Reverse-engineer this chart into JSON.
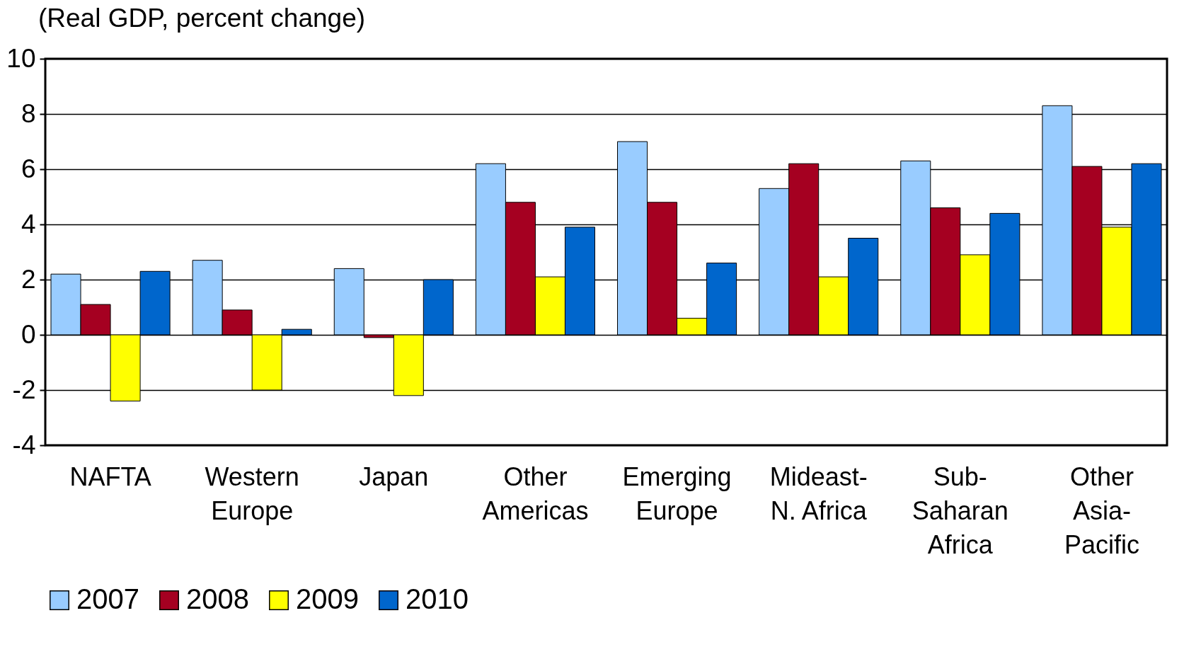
{
  "chart_data": {
    "type": "bar",
    "title": "(Real GDP, percent change)",
    "categories": [
      "NAFTA",
      "Western\nEurope",
      "Japan",
      "Other\nAmericas",
      "Emerging\nEurope",
      "Mideast-\nN. Africa",
      "Sub-\nSaharan\nAfrica",
      "Other\nAsia-\nPacific"
    ],
    "series": [
      {
        "name": "2007",
        "color": "#99ccff",
        "values": [
          2.2,
          2.7,
          2.4,
          6.2,
          7.0,
          5.3,
          6.3,
          8.3
        ]
      },
      {
        "name": "2008",
        "color": "#a50021",
        "values": [
          1.1,
          0.9,
          -0.1,
          4.8,
          4.8,
          6.2,
          4.6,
          6.1
        ]
      },
      {
        "name": "2009",
        "color": "#ffff00",
        "values": [
          -2.4,
          -2.0,
          -2.2,
          2.1,
          0.6,
          2.1,
          2.9,
          3.9
        ]
      },
      {
        "name": "2010",
        "color": "#0066cc",
        "values": [
          2.3,
          0.2,
          2.0,
          3.9,
          2.6,
          3.5,
          4.4,
          6.2
        ]
      }
    ],
    "ylim": [
      -4,
      10
    ],
    "yticks": [
      -4,
      -2,
      0,
      2,
      4,
      6,
      8,
      10
    ],
    "grid": "y",
    "legend": "bottom"
  }
}
